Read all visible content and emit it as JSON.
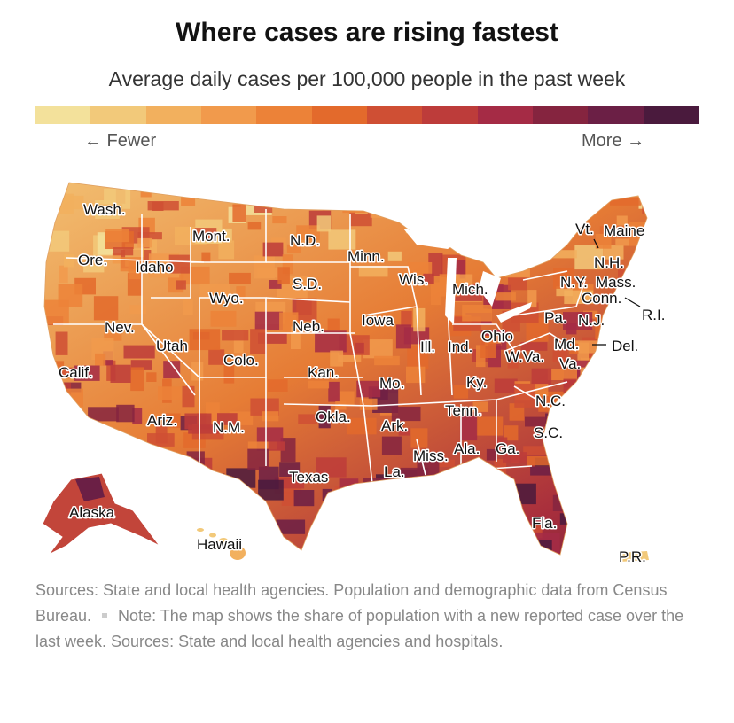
{
  "title": "Where cases are rising fastest",
  "subtitle": "Average daily cases per 100,000 people in the past week",
  "legend": {
    "fewer": "← Fewer",
    "more": "More →",
    "colors": [
      "#f3e19b",
      "#f2c97a",
      "#f2b05e",
      "#f19a4c",
      "#ec8238",
      "#e36a2c",
      "#cf4f34",
      "#bd3c3a",
      "#a52b45",
      "#85243f",
      "#6b1f45",
      "#4a1a3d"
    ]
  },
  "map": {
    "colors": {
      "state_border": "#ffffff",
      "land_low": "#f3c577",
      "land_mid": "#e67c35",
      "land_high": "#a82e3c",
      "land_top": "#5c1f3c"
    },
    "labels": [
      {
        "id": "wa",
        "text": "Wash."
      },
      {
        "id": "or",
        "text": "Ore."
      },
      {
        "id": "id",
        "text": "Idaho"
      },
      {
        "id": "mt",
        "text": "Mont."
      },
      {
        "id": "wy",
        "text": "Wyo."
      },
      {
        "id": "nd",
        "text": "N.D."
      },
      {
        "id": "sd",
        "text": "S.D."
      },
      {
        "id": "mn",
        "text": "Minn."
      },
      {
        "id": "wi",
        "text": "Wis."
      },
      {
        "id": "mi",
        "text": "Mich."
      },
      {
        "id": "nv",
        "text": "Nev."
      },
      {
        "id": "ut",
        "text": "Utah"
      },
      {
        "id": "co",
        "text": "Colo."
      },
      {
        "id": "ne",
        "text": "Neb."
      },
      {
        "id": "ia",
        "text": "Iowa"
      },
      {
        "id": "il",
        "text": "Ill."
      },
      {
        "id": "in",
        "text": "Ind."
      },
      {
        "id": "oh",
        "text": "Ohio"
      },
      {
        "id": "ca",
        "text": "Calif."
      },
      {
        "id": "ks",
        "text": "Kan."
      },
      {
        "id": "mo",
        "text": "Mo."
      },
      {
        "id": "ky",
        "text": "Ky."
      },
      {
        "id": "wv",
        "text": "W.Va."
      },
      {
        "id": "va",
        "text": "Va."
      },
      {
        "id": "az",
        "text": "Ariz."
      },
      {
        "id": "nm",
        "text": "N.M."
      },
      {
        "id": "ok",
        "text": "Okla."
      },
      {
        "id": "ar",
        "text": "Ark."
      },
      {
        "id": "tn",
        "text": "Tenn."
      },
      {
        "id": "nc",
        "text": "N.C."
      },
      {
        "id": "sc",
        "text": "S.C."
      },
      {
        "id": "ms",
        "text": "Miss."
      },
      {
        "id": "al",
        "text": "Ala."
      },
      {
        "id": "ga",
        "text": "Ga."
      },
      {
        "id": "la",
        "text": "La."
      },
      {
        "id": "tx",
        "text": "Texas"
      },
      {
        "id": "fl",
        "text": "Fla."
      },
      {
        "id": "ak",
        "text": "Alaska"
      },
      {
        "id": "hi",
        "text": "Hawaii"
      },
      {
        "id": "pr",
        "text": "P.R."
      },
      {
        "id": "vt",
        "text": "Vt."
      },
      {
        "id": "me",
        "text": "Maine"
      },
      {
        "id": "nh",
        "text": "N.H."
      },
      {
        "id": "ny",
        "text": "N.Y."
      },
      {
        "id": "ma",
        "text": "Mass."
      },
      {
        "id": "ct",
        "text": "Conn."
      },
      {
        "id": "ri",
        "text": "R.I."
      },
      {
        "id": "pa",
        "text": "Pa."
      },
      {
        "id": "nj",
        "text": "N.J."
      },
      {
        "id": "md",
        "text": "Md."
      },
      {
        "id": "de",
        "text": "Del."
      }
    ]
  },
  "notes": {
    "sources_1": "Sources: State and local health agencies. Population and demographic data from Census Bureau.",
    "note": "Note: The map shows the share of population with a new reported case over the last week. Sources: State and local health agencies and hospitals."
  }
}
